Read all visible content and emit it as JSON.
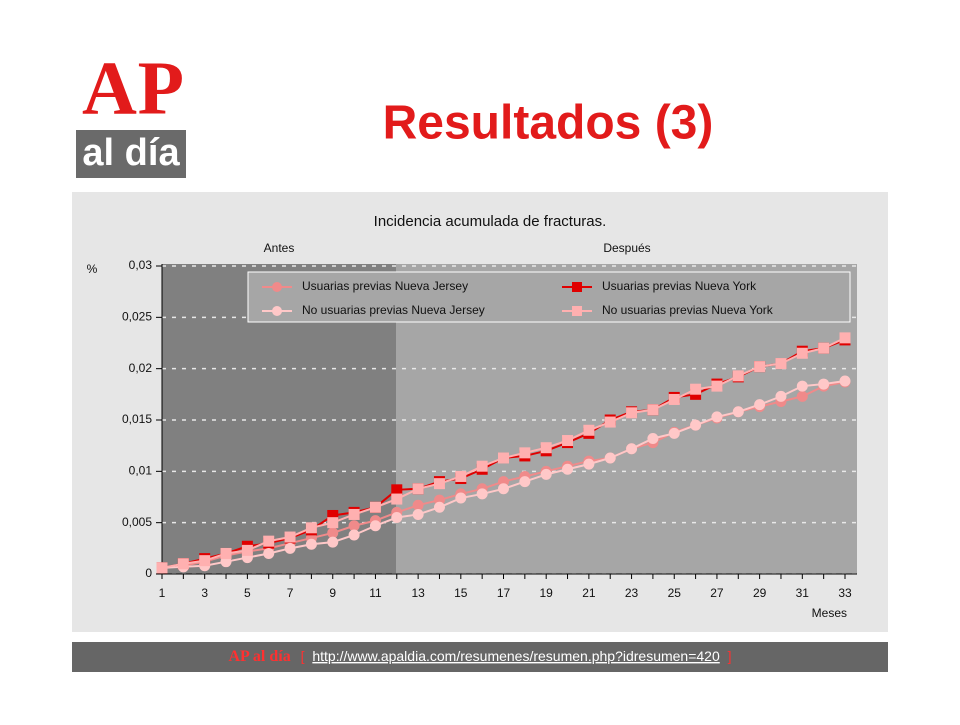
{
  "logo": {
    "top": "AP",
    "bottom": "al día"
  },
  "title": "Resultados (3)",
  "footer": {
    "brand": "AP al día",
    "open": "[",
    "url": "http://www.apaldia.com/resumenes/resumen.php?idresumen=420",
    "close": "]"
  },
  "chart_data": {
    "type": "line",
    "title": "Incidencia acumulada de fracturas.",
    "annotations": [
      "Antes",
      "Después"
    ],
    "y_label": "%",
    "x_label": "Meses",
    "x": [
      1,
      2,
      3,
      4,
      5,
      6,
      7,
      8,
      9,
      10,
      11,
      12,
      13,
      14,
      15,
      16,
      17,
      18,
      19,
      20,
      21,
      22,
      23,
      24,
      25,
      26,
      27,
      28,
      29,
      30,
      31,
      32,
      33
    ],
    "xlim": [
      1,
      33
    ],
    "xticks": [
      1,
      3,
      5,
      7,
      9,
      11,
      13,
      15,
      17,
      19,
      21,
      23,
      25,
      27,
      29,
      31,
      33
    ],
    "ylim": [
      0,
      0.03
    ],
    "yticks": [
      0,
      {
        "value": 0.005,
        "label": "0,005"
      },
      {
        "value": 0.01,
        "label": "0,01"
      },
      {
        "value": 0.015,
        "label": "0,015"
      },
      {
        "value": 0.02,
        "label": "0,02"
      },
      {
        "value": 0.025,
        "label": "0,025"
      },
      {
        "value": 0.03,
        "label": "0,03"
      }
    ],
    "grid": true,
    "legend": "top",
    "series": [
      {
        "name": "Usuarias previas Nueva Jersey",
        "color": "#f08a8a",
        "marker": "circle",
        "values": [
          0.0006,
          0.0008,
          0.0012,
          0.0018,
          0.0022,
          0.0025,
          0.003,
          0.0035,
          0.004,
          0.0047,
          0.0052,
          0.006,
          0.0067,
          0.0072,
          0.0078,
          0.0083,
          0.009,
          0.0095,
          0.01,
          0.0105,
          0.011,
          0.0113,
          0.0122,
          0.0128,
          0.0138,
          0.0145,
          0.0152,
          0.0158,
          0.0163,
          0.0168,
          0.0173,
          0.0183,
          0.0187
        ]
      },
      {
        "name": "Usuarias previas Nueva York",
        "color": "#e00000",
        "marker": "square",
        "values": [
          0.0006,
          0.001,
          0.0015,
          0.002,
          0.0027,
          0.003,
          0.0035,
          0.0043,
          0.0057,
          0.006,
          0.0065,
          0.0082,
          0.0083,
          0.009,
          0.0093,
          0.0102,
          0.0113,
          0.0115,
          0.012,
          0.0128,
          0.0137,
          0.015,
          0.0158,
          0.016,
          0.0172,
          0.0175,
          0.0185,
          0.0192,
          0.0202,
          0.0205,
          0.0217,
          0.022,
          0.0228
        ]
      },
      {
        "name": "No usuarias previas Nueva Jersey",
        "color": "#ffc8c8",
        "marker": "circle",
        "values": [
          0.0006,
          0.0007,
          0.0008,
          0.0012,
          0.0016,
          0.002,
          0.0025,
          0.0029,
          0.0031,
          0.0038,
          0.0047,
          0.0055,
          0.0058,
          0.0065,
          0.0074,
          0.0078,
          0.0083,
          0.009,
          0.0097,
          0.0102,
          0.0107,
          0.0113,
          0.0122,
          0.0132,
          0.0137,
          0.0145,
          0.0153,
          0.0158,
          0.0165,
          0.0173,
          0.0183,
          0.0185,
          0.0188
        ]
      },
      {
        "name": "No usuarias previas Nueva York",
        "color": "#ffb0b0",
        "marker": "square",
        "values": [
          0.0006,
          0.001,
          0.0013,
          0.002,
          0.0023,
          0.0032,
          0.0036,
          0.0045,
          0.005,
          0.0058,
          0.0065,
          0.0073,
          0.0083,
          0.0088,
          0.0095,
          0.0105,
          0.0113,
          0.0118,
          0.0123,
          0.013,
          0.014,
          0.0148,
          0.0157,
          0.016,
          0.017,
          0.018,
          0.0183,
          0.0193,
          0.0202,
          0.0205,
          0.0215,
          0.022,
          0.023
        ]
      }
    ]
  }
}
